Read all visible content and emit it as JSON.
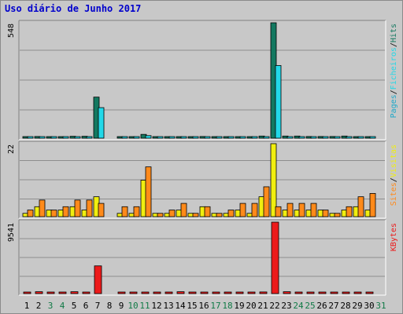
{
  "title": "Uso diário de Junho 2017",
  "colors": {
    "hits": "#137860",
    "files": "#22d8e8",
    "pages": "#1fa8c8",
    "visits": "#f0ee10",
    "sites": "#ff8a1a",
    "kbytes": "#ec1a1a",
    "weekend_label": "#117a46",
    "weekday_label": "#000000"
  },
  "chart_data": [
    {
      "type": "bar",
      "panel": "top",
      "ymax_label": "548",
      "ylim": [
        0,
        548
      ],
      "legend": [
        {
          "text": "Pages",
          "color": "#1fa8c8"
        },
        {
          "text": "/",
          "color": "#000000"
        },
        {
          "text": "Ficheiros",
          "color": "#22d8e8"
        },
        {
          "text": "/",
          "color": "#000000"
        },
        {
          "text": "Hits",
          "color": "#137860"
        }
      ],
      "categories": [
        "1",
        "2",
        "3",
        "4",
        "5",
        "6",
        "7",
        "8",
        "9",
        "10",
        "11",
        "12",
        "13",
        "14",
        "15",
        "16",
        "17",
        "18",
        "19",
        "20",
        "21",
        "22",
        "23",
        "24",
        "25",
        "26",
        "27",
        "28",
        "29",
        "30",
        "31"
      ],
      "series": [
        {
          "key": "hits",
          "values": [
            6,
            8,
            5,
            5,
            9,
            9,
            195,
            0,
            5,
            5,
            18,
            5,
            5,
            6,
            4,
            8,
            4,
            4,
            5,
            4,
            10,
            548,
            10,
            10,
            8,
            8,
            8,
            10,
            7,
            5,
            0
          ]
        },
        {
          "key": "files",
          "values": [
            4,
            7,
            3,
            3,
            6,
            6,
            145,
            0,
            3,
            3,
            12,
            3,
            3,
            4,
            2,
            5,
            2,
            2,
            3,
            2,
            7,
            345,
            7,
            7,
            5,
            5,
            5,
            7,
            4,
            3,
            0
          ]
        }
      ]
    },
    {
      "type": "bar",
      "panel": "middle",
      "ymax_label": "22",
      "ylim": [
        0,
        22
      ],
      "legend": [
        {
          "text": "Sites",
          "color": "#ff8a1a"
        },
        {
          "text": "/",
          "color": "#000000"
        },
        {
          "text": "Visitas",
          "color": "#f0ee10"
        }
      ],
      "categories": [
        "1",
        "2",
        "3",
        "4",
        "5",
        "6",
        "7",
        "8",
        "9",
        "10",
        "11",
        "12",
        "13",
        "14",
        "15",
        "16",
        "17",
        "18",
        "19",
        "20",
        "21",
        "22",
        "23",
        "24",
        "25",
        "26",
        "27",
        "28",
        "29",
        "30",
        "31"
      ],
      "series": [
        {
          "key": "visits",
          "values": [
            1,
            3,
            2,
            2,
            3,
            2,
            6,
            0,
            1,
            1,
            11,
            1,
            1,
            2,
            1,
            3,
            1,
            1,
            2,
            1,
            6,
            22,
            2,
            2,
            2,
            2,
            1,
            2,
            3,
            2,
            0
          ]
        },
        {
          "key": "sites",
          "values": [
            2,
            5,
            2,
            3,
            5,
            5,
            4,
            0,
            3,
            3,
            15,
            1,
            2,
            4,
            1,
            3,
            1,
            2,
            4,
            4,
            9,
            3,
            4,
            4,
            4,
            2,
            1,
            3,
            6,
            7,
            0
          ]
        }
      ]
    },
    {
      "type": "bar",
      "panel": "bottom",
      "ymax_label": "9541",
      "ylim": [
        0,
        9541
      ],
      "legend": [
        {
          "text": "KBytes",
          "color": "#ec1a1a"
        }
      ],
      "categories": [
        "1",
        "2",
        "3",
        "4",
        "5",
        "6",
        "7",
        "8",
        "9",
        "10",
        "11",
        "12",
        "13",
        "14",
        "15",
        "16",
        "17",
        "18",
        "19",
        "20",
        "21",
        "22",
        "23",
        "24",
        "25",
        "26",
        "27",
        "28",
        "29",
        "30",
        "31"
      ],
      "series": [
        {
          "key": "kbytes",
          "values": [
            80,
            250,
            120,
            110,
            250,
            180,
            3700,
            0,
            120,
            120,
            150,
            130,
            110,
            250,
            120,
            110,
            110,
            110,
            200,
            180,
            220,
            9541,
            250,
            150,
            120,
            110,
            120,
            200,
            150,
            200,
            0
          ]
        }
      ],
      "x_day_labels": [
        "1",
        "2",
        "3",
        "4",
        "5",
        "6",
        "7",
        "8",
        "9",
        "10",
        "11",
        "12",
        "13",
        "14",
        "15",
        "16",
        "17",
        "18",
        "19",
        "20",
        "21",
        "22",
        "23",
        "24",
        "25",
        "26",
        "27",
        "28",
        "29",
        "30",
        "31"
      ],
      "weekend_days": [
        "3",
        "4",
        "10",
        "11",
        "17",
        "18",
        "24",
        "25",
        "31"
      ]
    }
  ]
}
